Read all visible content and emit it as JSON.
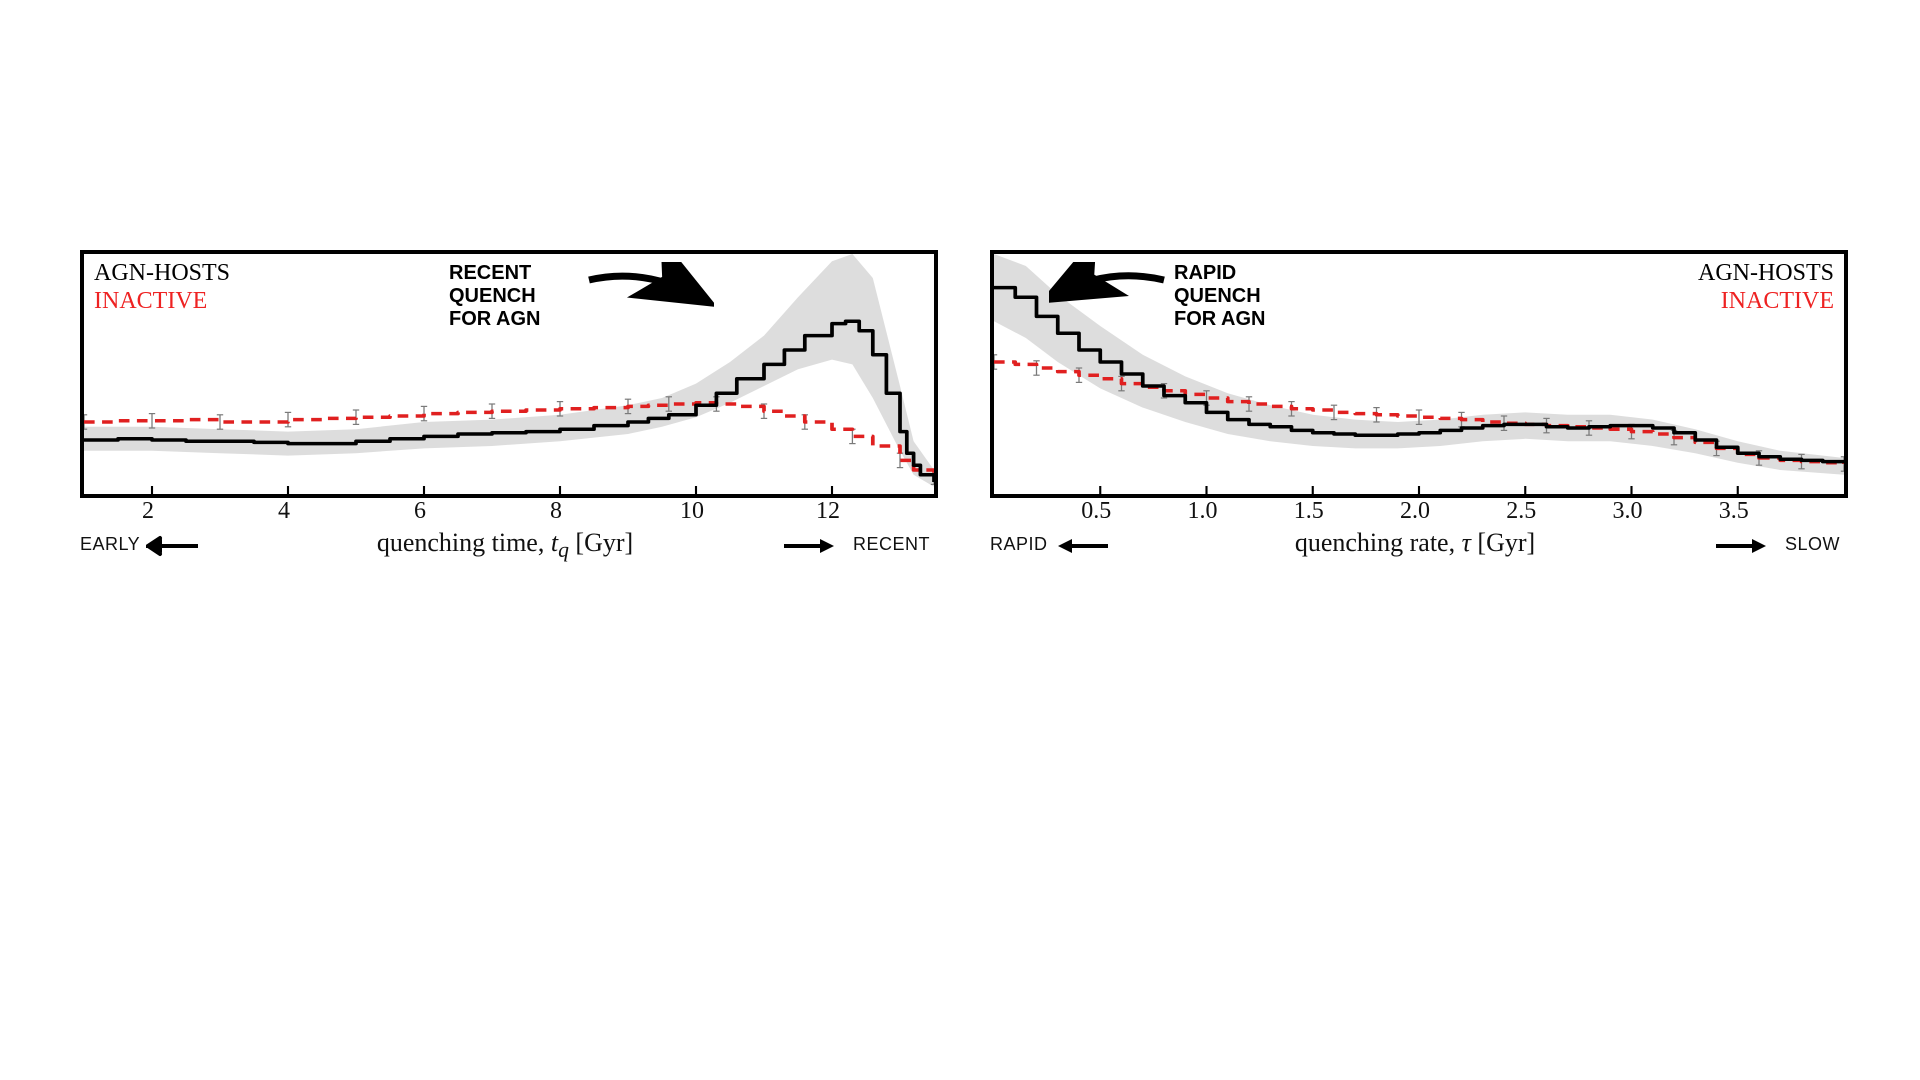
{
  "figure": {
    "background_color": "#ffffff",
    "panels": [
      {
        "id": "left",
        "type": "line",
        "xlabel_html": "quenching time, <span class='sub'>t<sub>q</sub></span> [Gyr]",
        "xlim": [
          1,
          13.5
        ],
        "ylim": [
          0,
          1.0
        ],
        "xticks": [
          2,
          4,
          6,
          8,
          10,
          12
        ],
        "edge_labels": {
          "left": "EARLY",
          "right": "RECENT"
        },
        "legend": {
          "black": "AGN-HOSTS",
          "red": "INACTIVE",
          "position": "top-left"
        },
        "annotation": {
          "text": "RECENT\nQUENCH\nFOR AGN",
          "arrow_target_x": 12.4,
          "arrow_target_y": 0.92
        },
        "series": {
          "agn_band_upper": [
            [
              1,
              0.28
            ],
            [
              2,
              0.28
            ],
            [
              3,
              0.27
            ],
            [
              4,
              0.26
            ],
            [
              5,
              0.27
            ],
            [
              6,
              0.3
            ],
            [
              7,
              0.31
            ],
            [
              8,
              0.33
            ],
            [
              9,
              0.37
            ],
            [
              9.5,
              0.4
            ],
            [
              10,
              0.46
            ],
            [
              10.5,
              0.55
            ],
            [
              11,
              0.66
            ],
            [
              11.5,
              0.82
            ],
            [
              12,
              0.97
            ],
            [
              12.3,
              1.0
            ],
            [
              12.6,
              0.9
            ],
            [
              13,
              0.45
            ],
            [
              13.2,
              0.22
            ],
            [
              13.5,
              0.1
            ]
          ],
          "agn_band_lower": [
            [
              1,
              0.18
            ],
            [
              2,
              0.18
            ],
            [
              3,
              0.17
            ],
            [
              4,
              0.16
            ],
            [
              5,
              0.17
            ],
            [
              6,
              0.19
            ],
            [
              7,
              0.2
            ],
            [
              8,
              0.22
            ],
            [
              9,
              0.25
            ],
            [
              9.5,
              0.28
            ],
            [
              10,
              0.32
            ],
            [
              10.5,
              0.38
            ],
            [
              11,
              0.45
            ],
            [
              11.5,
              0.52
            ],
            [
              12,
              0.56
            ],
            [
              12.3,
              0.54
            ],
            [
              12.6,
              0.4
            ],
            [
              13,
              0.18
            ],
            [
              13.2,
              0.08
            ],
            [
              13.5,
              0.03
            ]
          ],
          "agn_line": [
            [
              1,
              0.225
            ],
            [
              1.5,
              0.23
            ],
            [
              2,
              0.225
            ],
            [
              2.5,
              0.22
            ],
            [
              3,
              0.22
            ],
            [
              3.5,
              0.215
            ],
            [
              4,
              0.21
            ],
            [
              4.5,
              0.21
            ],
            [
              5,
              0.22
            ],
            [
              5.5,
              0.23
            ],
            [
              6,
              0.24
            ],
            [
              6.5,
              0.25
            ],
            [
              7,
              0.255
            ],
            [
              7.5,
              0.26
            ],
            [
              8,
              0.27
            ],
            [
              8.5,
              0.285
            ],
            [
              9,
              0.3
            ],
            [
              9.3,
              0.315
            ],
            [
              9.6,
              0.33
            ],
            [
              10,
              0.37
            ],
            [
              10.3,
              0.42
            ],
            [
              10.6,
              0.48
            ],
            [
              11,
              0.54
            ],
            [
              11.3,
              0.6
            ],
            [
              11.6,
              0.66
            ],
            [
              12,
              0.71
            ],
            [
              12.2,
              0.72
            ],
            [
              12.4,
              0.68
            ],
            [
              12.6,
              0.58
            ],
            [
              12.8,
              0.42
            ],
            [
              13,
              0.26
            ],
            [
              13.1,
              0.17
            ],
            [
              13.2,
              0.12
            ],
            [
              13.3,
              0.08
            ],
            [
              13.5,
              0.05
            ]
          ],
          "inactive_line": [
            [
              1,
              0.3
            ],
            [
              1.5,
              0.305
            ],
            [
              2,
              0.305
            ],
            [
              2.5,
              0.31
            ],
            [
              3,
              0.3
            ],
            [
              3.5,
              0.3
            ],
            [
              4,
              0.31
            ],
            [
              4.5,
              0.315
            ],
            [
              5,
              0.32
            ],
            [
              5.5,
              0.325
            ],
            [
              6,
              0.335
            ],
            [
              6.5,
              0.34
            ],
            [
              7,
              0.345
            ],
            [
              7.5,
              0.35
            ],
            [
              8,
              0.355
            ],
            [
              8.5,
              0.36
            ],
            [
              9,
              0.365
            ],
            [
              9.3,
              0.37
            ],
            [
              9.6,
              0.375
            ],
            [
              10,
              0.38
            ],
            [
              10.3,
              0.375
            ],
            [
              10.6,
              0.365
            ],
            [
              11,
              0.345
            ],
            [
              11.3,
              0.325
            ],
            [
              11.6,
              0.3
            ],
            [
              12,
              0.27
            ],
            [
              12.3,
              0.24
            ],
            [
              12.6,
              0.2
            ],
            [
              13,
              0.14
            ],
            [
              13.2,
              0.1
            ],
            [
              13.5,
              0.07
            ]
          ],
          "inactive_err": 0.03
        },
        "style": {
          "band_color": "#cfcfcf",
          "band_opacity": 0.7,
          "agn_line_color": "#000000",
          "agn_line_width": 3.5,
          "inactive_line_color": "#e02020",
          "inactive_line_width": 3.5,
          "inactive_dash": "10,7",
          "err_bar_color": "#7a7a7a",
          "err_bar_width": 1.2,
          "border_color": "#000000",
          "border_width": 4
        }
      },
      {
        "id": "right",
        "type": "line",
        "xlabel_html": "quenching rate, <span class='sub'>τ</span> [Gyr]",
        "xlim": [
          0,
          4.0
        ],
        "ylim": [
          0,
          1.0
        ],
        "xticks": [
          0.5,
          1.0,
          1.5,
          2.0,
          2.5,
          3.0,
          3.5
        ],
        "edge_labels": {
          "left": "RAPID",
          "right": "SLOW"
        },
        "legend": {
          "black": "AGN-HOSTS",
          "red": "INACTIVE",
          "position": "top-right"
        },
        "annotation": {
          "text": "RAPID\nQUENCH\nFOR AGN",
          "arrow_target_x": 0.15,
          "arrow_target_y": 0.92
        },
        "series": {
          "agn_band_upper": [
            [
              0,
              1.0
            ],
            [
              0.15,
              0.95
            ],
            [
              0.3,
              0.83
            ],
            [
              0.5,
              0.7
            ],
            [
              0.7,
              0.58
            ],
            [
              0.9,
              0.49
            ],
            [
              1.1,
              0.42
            ],
            [
              1.3,
              0.37
            ],
            [
              1.5,
              0.33
            ],
            [
              1.7,
              0.31
            ],
            [
              1.9,
              0.3
            ],
            [
              2.1,
              0.31
            ],
            [
              2.3,
              0.33
            ],
            [
              2.5,
              0.34
            ],
            [
              2.7,
              0.33
            ],
            [
              2.9,
              0.33
            ],
            [
              3.1,
              0.31
            ],
            [
              3.3,
              0.27
            ],
            [
              3.5,
              0.22
            ],
            [
              3.7,
              0.18
            ],
            [
              4.0,
              0.15
            ]
          ],
          "agn_band_lower": [
            [
              0,
              0.72
            ],
            [
              0.15,
              0.65
            ],
            [
              0.3,
              0.55
            ],
            [
              0.5,
              0.44
            ],
            [
              0.7,
              0.36
            ],
            [
              0.9,
              0.3
            ],
            [
              1.1,
              0.25
            ],
            [
              1.3,
              0.22
            ],
            [
              1.5,
              0.2
            ],
            [
              1.7,
              0.19
            ],
            [
              1.9,
              0.19
            ],
            [
              2.1,
              0.2
            ],
            [
              2.3,
              0.22
            ],
            [
              2.5,
              0.23
            ],
            [
              2.7,
              0.22
            ],
            [
              2.9,
              0.22
            ],
            [
              3.1,
              0.2
            ],
            [
              3.3,
              0.17
            ],
            [
              3.5,
              0.13
            ],
            [
              3.7,
              0.1
            ],
            [
              4.0,
              0.08
            ]
          ],
          "agn_line": [
            [
              0,
              0.86
            ],
            [
              0.1,
              0.82
            ],
            [
              0.2,
              0.74
            ],
            [
              0.3,
              0.67
            ],
            [
              0.4,
              0.6
            ],
            [
              0.5,
              0.55
            ],
            [
              0.6,
              0.5
            ],
            [
              0.7,
              0.45
            ],
            [
              0.8,
              0.41
            ],
            [
              0.9,
              0.38
            ],
            [
              1.0,
              0.34
            ],
            [
              1.1,
              0.31
            ],
            [
              1.2,
              0.29
            ],
            [
              1.3,
              0.28
            ],
            [
              1.4,
              0.265
            ],
            [
              1.5,
              0.255
            ],
            [
              1.6,
              0.25
            ],
            [
              1.7,
              0.245
            ],
            [
              1.8,
              0.245
            ],
            [
              1.9,
              0.25
            ],
            [
              2.0,
              0.255
            ],
            [
              2.1,
              0.265
            ],
            [
              2.2,
              0.275
            ],
            [
              2.3,
              0.285
            ],
            [
              2.4,
              0.29
            ],
            [
              2.5,
              0.29
            ],
            [
              2.6,
              0.28
            ],
            [
              2.7,
              0.275
            ],
            [
              2.8,
              0.28
            ],
            [
              2.9,
              0.285
            ],
            [
              3.0,
              0.285
            ],
            [
              3.1,
              0.275
            ],
            [
              3.2,
              0.255
            ],
            [
              3.3,
              0.225
            ],
            [
              3.4,
              0.195
            ],
            [
              3.5,
              0.17
            ],
            [
              3.6,
              0.155
            ],
            [
              3.7,
              0.145
            ],
            [
              3.8,
              0.14
            ],
            [
              3.9,
              0.135
            ],
            [
              4.0,
              0.13
            ]
          ],
          "inactive_line": [
            [
              0,
              0.55
            ],
            [
              0.1,
              0.54
            ],
            [
              0.2,
              0.525
            ],
            [
              0.3,
              0.51
            ],
            [
              0.4,
              0.495
            ],
            [
              0.5,
              0.48
            ],
            [
              0.6,
              0.46
            ],
            [
              0.7,
              0.445
            ],
            [
              0.8,
              0.43
            ],
            [
              0.9,
              0.415
            ],
            [
              1.0,
              0.4
            ],
            [
              1.1,
              0.385
            ],
            [
              1.2,
              0.375
            ],
            [
              1.3,
              0.365
            ],
            [
              1.4,
              0.355
            ],
            [
              1.5,
              0.35
            ],
            [
              1.6,
              0.34
            ],
            [
              1.7,
              0.335
            ],
            [
              1.8,
              0.33
            ],
            [
              1.9,
              0.325
            ],
            [
              2.0,
              0.32
            ],
            [
              2.1,
              0.315
            ],
            [
              2.2,
              0.31
            ],
            [
              2.3,
              0.3
            ],
            [
              2.4,
              0.295
            ],
            [
              2.5,
              0.29
            ],
            [
              2.6,
              0.285
            ],
            [
              2.7,
              0.28
            ],
            [
              2.8,
              0.275
            ],
            [
              2.9,
              0.27
            ],
            [
              3.0,
              0.26
            ],
            [
              3.1,
              0.25
            ],
            [
              3.2,
              0.235
            ],
            [
              3.3,
              0.215
            ],
            [
              3.4,
              0.19
            ],
            [
              3.5,
              0.165
            ],
            [
              3.6,
              0.15
            ],
            [
              3.7,
              0.14
            ],
            [
              3.8,
              0.135
            ],
            [
              3.9,
              0.13
            ],
            [
              4.0,
              0.125
            ]
          ],
          "inactive_err": 0.03
        },
        "style": {
          "band_color": "#cfcfcf",
          "band_opacity": 0.7,
          "agn_line_color": "#000000",
          "agn_line_width": 3.5,
          "inactive_line_color": "#e02020",
          "inactive_line_width": 3.5,
          "inactive_dash": "10,7",
          "err_bar_color": "#7a7a7a",
          "err_bar_width": 1.2,
          "border_color": "#000000",
          "border_width": 4
        }
      }
    ]
  }
}
